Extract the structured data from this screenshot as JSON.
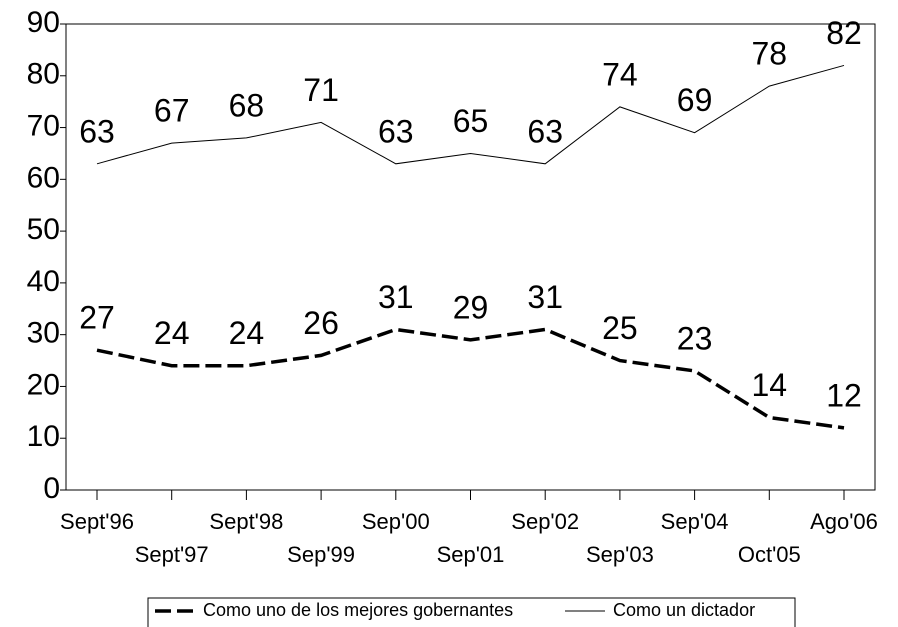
{
  "chart_data": {
    "type": "line",
    "categories": [
      "Sept'96",
      "Sept'97",
      "Sept'98",
      "Sep'99",
      "Sep'00",
      "Sep'01",
      "Sep'02",
      "Sep'03",
      "Sep'04",
      "Oct'05",
      "Ago'06"
    ],
    "series": [
      {
        "name": "Como uno de los mejores gobernantes",
        "color": "#000000",
        "line_style": "dashed",
        "values": [
          27,
          24,
          24,
          26,
          31,
          29,
          31,
          25,
          23,
          14,
          12
        ]
      },
      {
        "name": "Como un dictador",
        "color": "#000000",
        "line_style": "solid",
        "values": [
          63,
          67,
          68,
          71,
          63,
          65,
          63,
          74,
          69,
          78,
          82
        ]
      }
    ],
    "ylim": [
      0,
      90
    ],
    "yticks": [
      0,
      10,
      20,
      30,
      40,
      50,
      60,
      70,
      80,
      90
    ],
    "grid": false,
    "legend": "bottom"
  }
}
